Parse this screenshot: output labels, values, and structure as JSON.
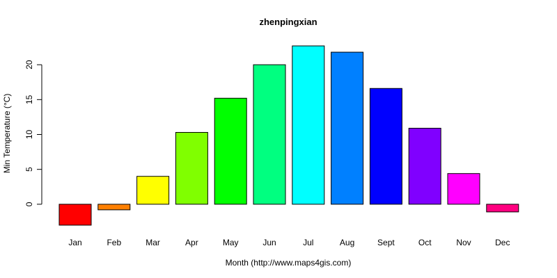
{
  "chart_data": {
    "type": "bar",
    "title": "zhenpingxian",
    "xlabel": "Month (http://www.maps4gis.com)",
    "ylabel": "Min Temperature (°C)",
    "categories": [
      "Jan",
      "Feb",
      "Mar",
      "Apr",
      "May",
      "Jun",
      "Jul",
      "Aug",
      "Sept",
      "Oct",
      "Nov",
      "Dec"
    ],
    "values": [
      -3.0,
      -0.8,
      4.0,
      10.3,
      15.2,
      20.0,
      22.7,
      21.8,
      16.6,
      10.9,
      4.4,
      -1.1
    ],
    "colors": [
      "#ff0000",
      "#ff8000",
      "#ffff00",
      "#80ff00",
      "#00ff00",
      "#00ff80",
      "#00ffff",
      "#0080ff",
      "#0000ff",
      "#8000ff",
      "#ff00ff",
      "#ff0080"
    ],
    "yticks": [
      0,
      5,
      10,
      15,
      20
    ],
    "ylim": [
      -3.5,
      23.5
    ],
    "grid": false,
    "legend": "none"
  }
}
